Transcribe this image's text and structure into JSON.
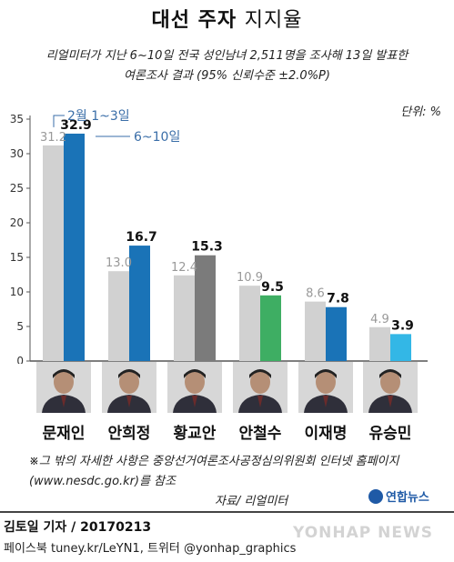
{
  "title_bold": "대선 주자",
  "title_light": "지지율",
  "subtitle_line1": "리얼미터가 지난 6~10일 전국 성인남녀 2,511명을 조사해 13일 발표한",
  "subtitle_line2": "여론조사 결과 (95% 신뢰수준 ±2.0%P)",
  "unit_label": "단위: %",
  "chart_data": {
    "type": "bar",
    "categories": [
      "문재인",
      "안희정",
      "황교안",
      "안철수",
      "이재명",
      "유승민"
    ],
    "series": [
      {
        "name": "2월 1~3일",
        "values": [
          31.2,
          13.0,
          12.4,
          10.9,
          8.6,
          4.9
        ]
      },
      {
        "name": "6~10일",
        "values": [
          32.9,
          16.7,
          15.3,
          9.5,
          7.8,
          3.9
        ]
      }
    ],
    "ylim": [
      0,
      35
    ],
    "yticks": [
      0,
      5,
      10,
      15,
      20,
      25,
      30,
      35
    ],
    "grid": false,
    "legend": "inline-annotation",
    "colors": {
      "previous": "#d1d1d1",
      "current": [
        "#1a73b7",
        "#1a73b7",
        "#7b7b7b",
        "#3eae63",
        "#1a73b7",
        "#33b7e6"
      ],
      "axis": "#555555",
      "legend_text": "#3a6ea8"
    }
  },
  "candidate_photos": [
    "portrait-icon",
    "portrait-icon",
    "portrait-icon",
    "portrait-icon",
    "portrait-icon",
    "portrait-icon"
  ],
  "note_line1": "※그 밖의 자세한 사항은 중앙선거여론조사공정심의위원회 인터넷 홈페이지",
  "note_line2": "(www.nesdc.go.kr)를 참조",
  "source": "자료/ 리얼미터",
  "logo_text": "연합뉴스",
  "credit": "김토일 기자 / 20170213",
  "contact": "페이스북 tuney.kr/LeYN1, 트위터 @yonhap_graphics",
  "watermark": "YONHAP NEWS"
}
